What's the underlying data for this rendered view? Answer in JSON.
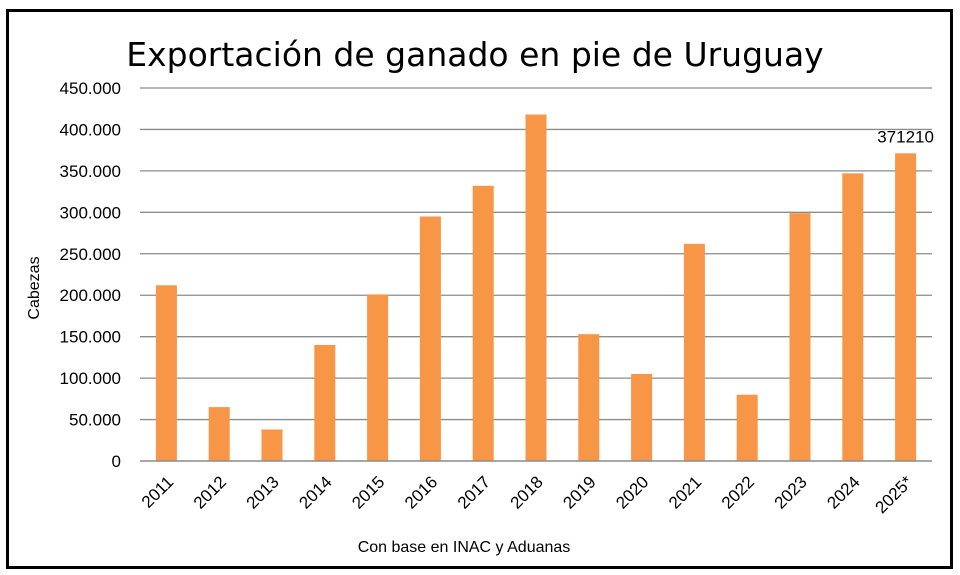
{
  "chart_data": {
    "type": "bar",
    "title": "Exportación de ganado en pie de Uruguay",
    "xlabel": "Con base en INAC y Aduanas",
    "ylabel": "Cabezas",
    "categories": [
      "2011",
      "2012",
      "2013",
      "2014",
      "2015",
      "2016",
      "2017",
      "2018",
      "2019",
      "2020",
      "2021",
      "2022",
      "2023",
      "2024",
      "2025*"
    ],
    "values": [
      212000,
      65000,
      38000,
      140000,
      201000,
      295000,
      332000,
      418000,
      153000,
      105000,
      262000,
      80000,
      299000,
      347000,
      371210
    ],
    "ylim": [
      0,
      450000
    ],
    "yticks": [
      "0",
      "50.000",
      "100.000",
      "150.000",
      "200.000",
      "250.000",
      "300.000",
      "350.000",
      "400.000",
      "450.000"
    ],
    "grid": true,
    "bar_color": "#F79646",
    "data_labels": [
      {
        "category": "2025*",
        "text": "371210"
      }
    ]
  }
}
